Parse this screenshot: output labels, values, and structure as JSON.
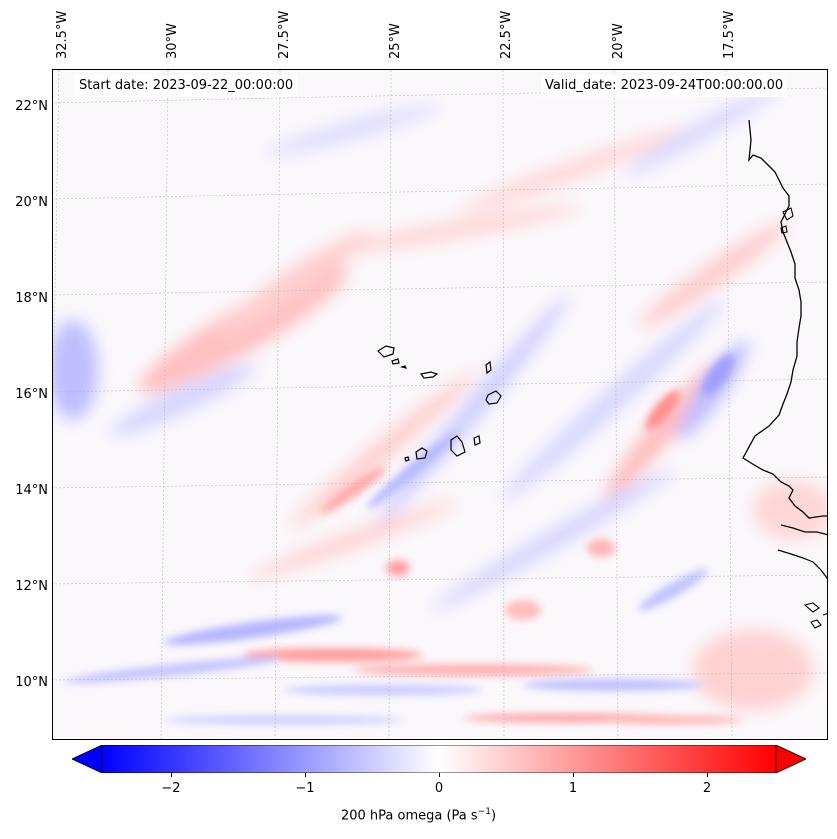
{
  "map": {
    "start_date": "Start date: 2023-09-22_00:00:00",
    "valid_date": "Valid_date: 2023-09-24T00:00:00.00",
    "lon_labels": [
      "32.5°W",
      "30°W",
      "27.5°W",
      "25°W",
      "22.5°W",
      "20°W",
      "17.5°W"
    ],
    "lat_labels": [
      "22°N",
      "20°N",
      "18°N",
      "16°N",
      "14°N",
      "12°N",
      "10°N"
    ],
    "field": "200 hPa omega"
  },
  "colorbar": {
    "ticks": [
      "−2",
      "−1",
      "0",
      "1",
      "2"
    ],
    "tick_values": [
      -2,
      -1,
      0,
      1,
      2
    ],
    "range": [
      -2.6,
      2.6
    ],
    "label_text": "200 hPa omega (Pa s",
    "label_exp": "−1",
    "label_close": ")",
    "cmap": [
      "#0000ff",
      "#ffffff",
      "#ff0000"
    ]
  }
}
